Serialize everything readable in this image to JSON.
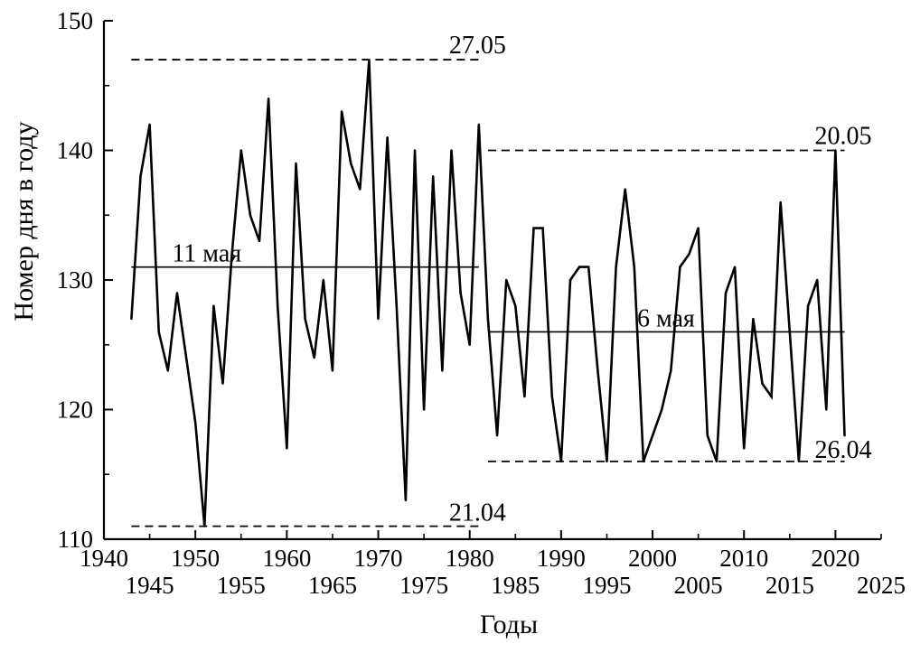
{
  "chart_data": {
    "type": "line",
    "xlabel": "Годы",
    "ylabel": "Номер дня в году",
    "xlim": [
      1940,
      2025
    ],
    "ylim": [
      110,
      150
    ],
    "x_ticks_upper": [
      1940,
      1950,
      1960,
      1970,
      1980,
      1990,
      2000,
      2010,
      2020
    ],
    "x_ticks_lower": [
      1945,
      1955,
      1965,
      1975,
      1985,
      1995,
      2005,
      2015,
      2025
    ],
    "y_ticks": [
      110,
      120,
      130,
      140,
      150
    ],
    "grid": false,
    "series": [
      {
        "x": [
          1943,
          1944,
          1945,
          1946,
          1947,
          1948,
          1949,
          1950,
          1951,
          1952,
          1953,
          1954,
          1955,
          1956,
          1957,
          1958,
          1959,
          1960,
          1961,
          1962,
          1963,
          1964,
          1965,
          1966,
          1967,
          1968,
          1969,
          1970,
          1971,
          1972,
          1973,
          1974,
          1975,
          1976,
          1977,
          1978,
          1979,
          1980,
          1981,
          1982,
          1983,
          1984,
          1985,
          1986,
          1987,
          1988,
          1989,
          1990,
          1991,
          1992,
          1993,
          1994,
          1995,
          1996,
          1997,
          1998,
          1999,
          2000,
          2001,
          2002,
          2003,
          2004,
          2005,
          2006,
          2007,
          2008,
          2009,
          2010,
          2011,
          2012,
          2013,
          2014,
          2015,
          2016,
          2017,
          2018,
          2019,
          2020,
          2021
        ],
        "values": [
          127,
          138,
          142,
          126,
          123,
          129,
          124,
          119,
          111,
          128,
          122,
          132,
          140,
          135,
          133,
          144,
          128,
          117,
          139,
          127,
          124,
          130,
          123,
          143,
          139,
          137,
          147,
          127,
          141,
          128,
          113,
          140,
          120,
          138,
          123,
          140,
          129,
          125,
          142,
          127,
          118,
          130,
          128,
          121,
          134,
          134,
          121,
          116,
          130,
          131,
          131,
          123,
          116,
          131,
          137,
          131,
          116,
          118,
          120,
          123,
          131,
          132,
          134,
          118,
          116,
          129,
          131,
          117,
          127,
          122,
          121,
          136,
          126,
          116,
          128,
          130,
          120,
          140,
          118
        ]
      }
    ],
    "reference_lines": [
      {
        "label": "27.05",
        "y": 147,
        "x": [
          1943,
          1981
        ],
        "style": "dashed"
      },
      {
        "label": "11 мая",
        "y": 131,
        "x": [
          1943,
          1981
        ],
        "style": "solid"
      },
      {
        "label": "21.04",
        "y": 111,
        "x": [
          1943,
          1981
        ],
        "style": "dashed"
      },
      {
        "label": "20.05",
        "y": 140,
        "x": [
          1982,
          2021
        ],
        "style": "dashed"
      },
      {
        "label": "6 мая",
        "y": 126,
        "x": [
          1982,
          2021
        ],
        "style": "solid"
      },
      {
        "label": "26.04",
        "y": 116,
        "x": [
          1982,
          2021
        ],
        "style": "dashed"
      }
    ]
  }
}
